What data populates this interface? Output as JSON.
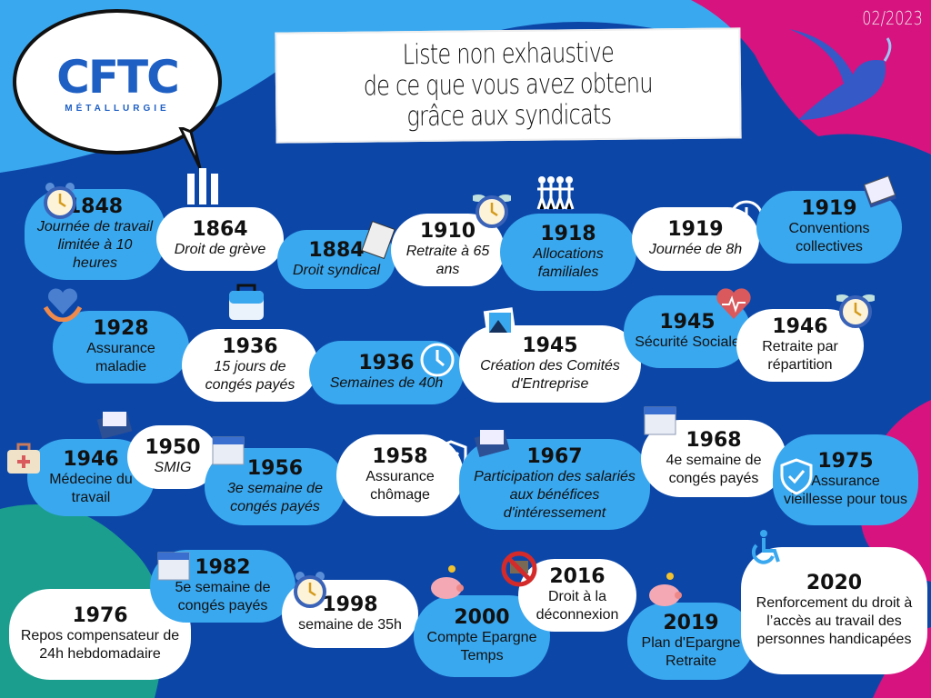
{
  "header": {
    "title_lines": [
      "Liste non exhaustive",
      "de ce que vous avez obtenu",
      "grâce aux syndicats"
    ],
    "date": "02/2023",
    "logo": {
      "name": "CFTC",
      "subtitle": "MÉTALLURGIE"
    }
  },
  "colors": {
    "dark_blue": "#0c47a8",
    "light_blue": "#3aa8ef",
    "pink": "#d6137f",
    "teal": "#1b9e8e",
    "white": "#ffffff"
  },
  "items": [
    {
      "year": "1848",
      "text": "Journée de travail limitée à 10 heures",
      "style": "light",
      "italic": true,
      "icon": "alarm-clock"
    },
    {
      "year": "1864",
      "text": "Droit de grève",
      "style": "white",
      "italic": true,
      "icon": "raised-fists"
    },
    {
      "year": "1884",
      "text": "Droit syndical",
      "style": "light",
      "italic": true,
      "icon": "notebook"
    },
    {
      "year": "1910",
      "text": "Retraite à 65 ans",
      "style": "white",
      "italic": true,
      "icon": "winged-clock"
    },
    {
      "year": "1918",
      "text": "Allocations familiales",
      "style": "light",
      "italic": true,
      "icon": "family-people"
    },
    {
      "year": "1919",
      "text": "Journée de 8h",
      "style": "white",
      "italic": true,
      "icon": "clock"
    },
    {
      "year": "1919",
      "text": "Conventions collectives",
      "style": "light",
      "italic": false,
      "icon": "documents"
    },
    {
      "year": "1928",
      "text": "Assurance maladie",
      "style": "light",
      "italic": false,
      "icon": "heart-hands"
    },
    {
      "year": "1936",
      "text": "15 jours de congés payés",
      "style": "white",
      "italic": true,
      "icon": "suitcase"
    },
    {
      "year": "1936",
      "text": "Semaines de 40h",
      "style": "light",
      "italic": true,
      "icon": "clock"
    },
    {
      "year": "1945",
      "text": "Création des Comités d'Entreprise",
      "style": "white",
      "italic": true,
      "icon": "photos"
    },
    {
      "year": "1945",
      "text": "Sécurité Sociale",
      "style": "light",
      "italic": false,
      "icon": "heartbeat"
    },
    {
      "year": "1946",
      "text": "Retraite par répartition",
      "style": "white",
      "italic": false,
      "icon": "winged-clock"
    },
    {
      "year": "1946",
      "text": "Médecine du travail",
      "style": "light",
      "italic": false,
      "icon": "first-aid-kit"
    },
    {
      "year": "1950",
      "text": "SMIG",
      "style": "white",
      "italic": true,
      "icon": "money"
    },
    {
      "year": "1956",
      "text": "3e semaine de congés payés",
      "style": "light",
      "italic": true,
      "icon": "calendar"
    },
    {
      "year": "1958",
      "text": "Assurance chômage",
      "style": "white",
      "italic": false,
      "icon": "shield"
    },
    {
      "year": "1967",
      "text": "Participation des salariés aux bénéfices d'intéressement",
      "style": "light",
      "italic": true,
      "icon": "money"
    },
    {
      "year": "1968",
      "text": "4e semaine de congés payés",
      "style": "white",
      "italic": false,
      "icon": "calendar"
    },
    {
      "year": "1975",
      "text": "Assurance vieillesse pour tous",
      "style": "light",
      "italic": false,
      "icon": "shield"
    },
    {
      "year": "1976",
      "text": "Repos compensateur de 24h hebdomadaire",
      "style": "white",
      "italic": false,
      "icon": "shield"
    },
    {
      "year": "1982",
      "text": "5e semaine de congés payés",
      "style": "light",
      "italic": false,
      "icon": "calendar"
    },
    {
      "year": "1998",
      "text": "semaine de 35h",
      "style": "white",
      "italic": false,
      "icon": "alarm-clock"
    },
    {
      "year": "2000",
      "text": "Compte Epargne Temps",
      "style": "light",
      "italic": false,
      "icon": "piggy-bank"
    },
    {
      "year": "2016",
      "text": "Droit à la déconnexion",
      "style": "white",
      "italic": false,
      "icon": "no-laptop"
    },
    {
      "year": "2019",
      "text": "Plan d'Epargne Retraite",
      "style": "light",
      "italic": false,
      "icon": "piggy-bank"
    },
    {
      "year": "2020",
      "text": "Renforcement du droit à l’accès au travail des personnes handicapées",
      "style": "white",
      "italic": false,
      "icon": "wheelchair"
    }
  ]
}
